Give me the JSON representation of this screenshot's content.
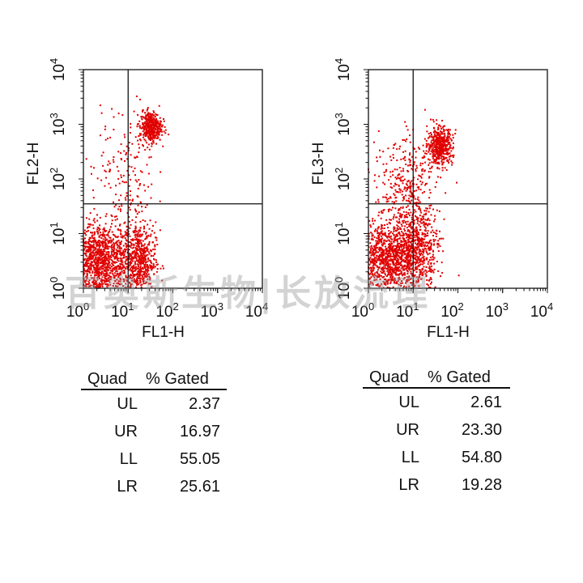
{
  "watermark": "百奥斯生物|长放流理",
  "chart_data": [
    {
      "type": "scatter",
      "title": "",
      "xlabel": "FL1-H",
      "ylabel": "FL2-H",
      "xscale": "log",
      "yscale": "log",
      "xlim": [
        1,
        10000
      ],
      "ylim": [
        1,
        10000
      ],
      "tick_labels": [
        {
          "base": "10",
          "exp": "0"
        },
        {
          "base": "10",
          "exp": "1"
        },
        {
          "base": "10",
          "exp": "2"
        },
        {
          "base": "10",
          "exp": "3"
        },
        {
          "base": "10",
          "exp": "4"
        }
      ],
      "gate": {
        "x": 10,
        "y": 35
      },
      "point_color": "#e00000",
      "clusters": [
        {
          "x": 2.5,
          "y": 3.0,
          "sx": 0.38,
          "sy": 0.36,
          "n": 1300
        },
        {
          "x": 18,
          "y": 3.2,
          "sx": 0.18,
          "sy": 0.35,
          "n": 550
        },
        {
          "x": 32,
          "y": 900,
          "sx": 0.12,
          "sy": 0.14,
          "n": 400
        },
        {
          "x": 10,
          "y": 120,
          "sx": 0.3,
          "sy": 0.6,
          "n": 120
        },
        {
          "x": 5,
          "y": 200,
          "sx": 0.35,
          "sy": 0.45,
          "n": 40
        }
      ],
      "table": {
        "headers": [
          "Quad",
          "% Gated"
        ],
        "rows": [
          {
            "quad": "UL",
            "pct": "2.37"
          },
          {
            "quad": "UR",
            "pct": "16.97"
          },
          {
            "quad": "LL",
            "pct": "55.05"
          },
          {
            "quad": "LR",
            "pct": "25.61"
          }
        ]
      }
    },
    {
      "type": "scatter",
      "title": "",
      "xlabel": "FL1-H",
      "ylabel": "FL3-H",
      "xscale": "log",
      "yscale": "log",
      "xlim": [
        1,
        10000
      ],
      "ylim": [
        1,
        10000
      ],
      "tick_labels": [
        {
          "base": "10",
          "exp": "0"
        },
        {
          "base": "10",
          "exp": "1"
        },
        {
          "base": "10",
          "exp": "2"
        },
        {
          "base": "10",
          "exp": "3"
        },
        {
          "base": "10",
          "exp": "4"
        }
      ],
      "gate": {
        "x": 10,
        "y": 35
      },
      "point_color": "#e00000",
      "clusters": [
        {
          "x": 3.0,
          "y": 3.5,
          "sx": 0.36,
          "sy": 0.34,
          "n": 1200
        },
        {
          "x": 14,
          "y": 6,
          "sx": 0.22,
          "sy": 0.35,
          "n": 450
        },
        {
          "x": 40,
          "y": 400,
          "sx": 0.14,
          "sy": 0.17,
          "n": 480
        },
        {
          "x": 8,
          "y": 60,
          "sx": 0.3,
          "sy": 0.45,
          "n": 300
        },
        {
          "x": 4,
          "y": 150,
          "sx": 0.35,
          "sy": 0.4,
          "n": 40
        }
      ],
      "table": {
        "headers": [
          "Quad",
          "% Gated"
        ],
        "rows": [
          {
            "quad": "UL",
            "pct": "2.61"
          },
          {
            "quad": "UR",
            "pct": "23.30"
          },
          {
            "quad": "LL",
            "pct": "54.80"
          },
          {
            "quad": "LR",
            "pct": "19.28"
          }
        ]
      }
    }
  ]
}
